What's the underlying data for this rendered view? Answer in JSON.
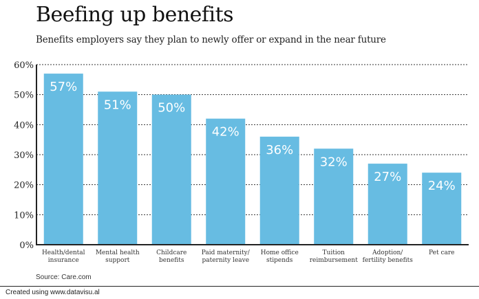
{
  "chart_data": {
    "type": "bar",
    "title": "Beefing up benefits",
    "subtitle": "Benefits employers say they plan to newly offer or expand in the near future",
    "categories": [
      [
        "Health/dental",
        "insurance"
      ],
      [
        "Mental health",
        "support"
      ],
      [
        "Childcare",
        "benefits"
      ],
      [
        "Paid maternity/",
        "paternity leave"
      ],
      [
        "Home office",
        "stipends"
      ],
      [
        "Tuition",
        "reimbursement"
      ],
      [
        "Adoption/",
        "fertility benefits"
      ],
      [
        "Pet care"
      ]
    ],
    "values": [
      57,
      51,
      50,
      42,
      36,
      32,
      27,
      24
    ],
    "value_labels": [
      "57%",
      "51%",
      "50%",
      "42%",
      "36%",
      "32%",
      "27%",
      "24%"
    ],
    "xlabel": "",
    "ylabel": "",
    "ylim": [
      0,
      60
    ],
    "yticks": [
      0,
      10,
      20,
      30,
      40,
      50,
      60
    ],
    "ytick_labels": [
      "0%",
      "10%",
      "20%",
      "30%",
      "40%",
      "50%",
      "60%"
    ],
    "grid": true,
    "bar_color": "#67bce2",
    "source": "Source: Care.com"
  },
  "footer": "Created using www.datavisu.al"
}
